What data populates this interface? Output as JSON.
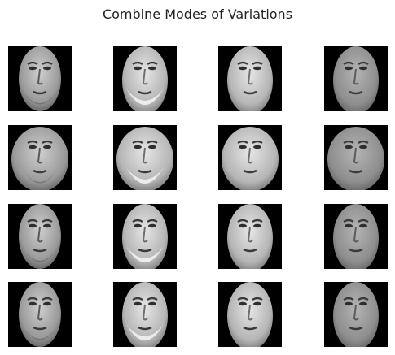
{
  "figure": {
    "title": "Combine Modes of Variations",
    "grid": {
      "rows": 4,
      "cols": 4
    }
  },
  "tiles": [
    {
      "row": 0,
      "col": 0,
      "shape": "narrow",
      "tone": "medium",
      "beard": "dark"
    },
    {
      "row": 0,
      "col": 1,
      "shape": "long",
      "tone": "light",
      "beard": "white"
    },
    {
      "row": 0,
      "col": 2,
      "shape": "long",
      "tone": "light",
      "beard": "none"
    },
    {
      "row": 0,
      "col": 3,
      "shape": "long",
      "tone": "gray",
      "beard": "none"
    },
    {
      "row": 1,
      "col": 0,
      "shape": "round",
      "tone": "medium",
      "beard": "dark"
    },
    {
      "row": 1,
      "col": 1,
      "shape": "round",
      "tone": "light",
      "beard": "white"
    },
    {
      "row": 1,
      "col": 2,
      "shape": "round",
      "tone": "light",
      "beard": "none"
    },
    {
      "row": 1,
      "col": 3,
      "shape": "round",
      "tone": "gray",
      "beard": "none"
    },
    {
      "row": 2,
      "col": 0,
      "shape": "narrow",
      "tone": "medium",
      "beard": "dark"
    },
    {
      "row": 2,
      "col": 1,
      "shape": "long",
      "tone": "light",
      "beard": "white"
    },
    {
      "row": 2,
      "col": 2,
      "shape": "long",
      "tone": "light",
      "beard": "none"
    },
    {
      "row": 2,
      "col": 3,
      "shape": "long",
      "tone": "gray",
      "beard": "none"
    },
    {
      "row": 3,
      "col": 0,
      "shape": "narrow",
      "tone": "medium",
      "beard": "dark"
    },
    {
      "row": 3,
      "col": 1,
      "shape": "long",
      "tone": "light",
      "beard": "white"
    },
    {
      "row": 3,
      "col": 2,
      "shape": "long",
      "tone": "light",
      "beard": "none"
    },
    {
      "row": 3,
      "col": 3,
      "shape": "long",
      "tone": "gray",
      "beard": "none"
    }
  ],
  "colors": {
    "background": "#ffffff",
    "tile_background": "#000000",
    "title": "#222222"
  }
}
